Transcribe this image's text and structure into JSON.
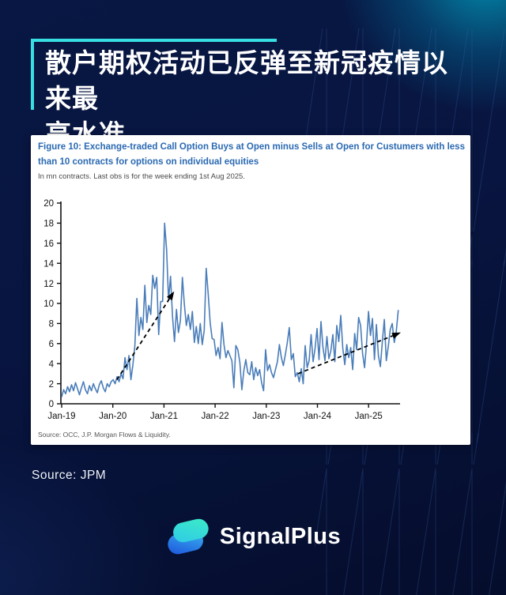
{
  "page": {
    "background_color": "#081540",
    "accent_cyan": "#38dfe2",
    "card_color": "#ffffff"
  },
  "header": {
    "title_line1": "散户期权活动已反弹至新冠疫情以来最",
    "title_line2": "高水准"
  },
  "figure_card": {
    "title_line1": "Figure 10: Exchange-traded Call Option Buys at Open minus Sells at Open for Custumers with less",
    "title_line2": "than 10 contracts for options on individual equities",
    "subtitle": "In mn contracts. Last obs is for the week ending 1st Aug 2025.",
    "source": "Source: OCC, J.P. Morgan Flows & Liquidity."
  },
  "footer": {
    "source": "Source: JPM",
    "brand": "SignalPlus"
  },
  "chart_data": {
    "type": "line",
    "title": "Exchange-traded Call Option Buys at Open minus Sells at Open for Custumers with less than 10 contracts for options on individual equities",
    "xlabel": "",
    "ylabel": "mn contracts",
    "ylim": [
      0,
      20
    ],
    "y_tick_step": 2,
    "grid": false,
    "legend": "none",
    "line_color": "#4a7db9",
    "axis_color": "#111111",
    "x_start": 2019.0,
    "x_end": 2025.58,
    "x_step_years": 0.0387,
    "x_tick_positions": [
      2019,
      2020,
      2021,
      2022,
      2023,
      2024,
      2025
    ],
    "x_tick_labels": [
      "Jan-19",
      "Jan-20",
      "Jan-21",
      "Jan-22",
      "Jan-23",
      "Jan-24",
      "Jan-25"
    ],
    "series": [
      {
        "name": "Call option buys at open minus sells at open, customers < 10 contracts",
        "values": [
          0.7,
          1.4,
          1.0,
          1.7,
          1.2,
          1.9,
          1.3,
          2.1,
          1.5,
          0.9,
          1.6,
          2.2,
          1.4,
          1.0,
          1.8,
          1.3,
          2.0,
          1.5,
          1.1,
          1.9,
          2.3,
          1.6,
          1.2,
          2.0,
          1.7,
          2.2,
          2.4,
          2.0,
          2.7,
          2.2,
          3.0,
          2.5,
          4.6,
          3.4,
          4.8,
          2.4,
          3.9,
          5.8,
          10.5,
          6.8,
          8.6,
          7.4,
          11.8,
          8.1,
          9.8,
          8.9,
          12.8,
          11.5,
          12.6,
          6.9,
          10.2,
          10.2,
          18.0,
          15.4,
          10.3,
          12.7,
          8.7,
          6.2,
          9.4,
          7.1,
          8.3,
          12.6,
          9.9,
          7.8,
          8.9,
          7.4,
          9.2,
          6.1,
          7.7,
          6.0,
          8.0,
          5.9,
          7.3,
          13.5,
          11.0,
          8.1,
          6.5,
          6.4,
          4.8,
          5.6,
          4.5,
          8.1,
          5.9,
          4.6,
          5.3,
          4.8,
          4.3,
          1.6,
          5.8,
          5.4,
          4.1,
          1.4,
          3.3,
          4.4,
          3.1,
          2.9,
          4.2,
          2.4,
          3.6,
          2.8,
          3.4,
          2.1,
          1.3,
          5.4,
          3.3,
          3.9,
          3.1,
          2.6,
          3.4,
          4.2,
          5.9,
          4.6,
          3.8,
          4.9,
          6.1,
          7.6,
          4.4,
          5.0,
          2.7,
          3.1,
          2.2,
          3.5,
          2.0,
          5.8,
          3.6,
          4.3,
          6.9,
          4.2,
          5.5,
          7.5,
          4.4,
          8.2,
          5.6,
          4.3,
          6.7,
          4.5,
          5.3,
          6.9,
          4.2,
          7.8,
          6.2,
          8.8,
          5.5,
          3.9,
          5.9,
          4.6,
          5.6,
          3.4,
          7.0,
          5.4,
          8.6,
          7.8,
          5.0,
          3.6,
          6.0,
          9.2,
          6.8,
          8.5,
          4.4,
          7.9,
          4.8,
          3.7,
          6.2,
          8.4,
          4.3,
          5.7,
          7.4,
          8.0,
          6.1,
          7.2,
          9.3
        ]
      }
    ],
    "trend_arrows": [
      {
        "from": [
          2020.08,
          2.4
        ],
        "to": [
          2021.2,
          11.2
        ]
      },
      {
        "from": [
          2023.62,
          3.0
        ],
        "to": [
          2025.63,
          7.1
        ]
      }
    ]
  }
}
